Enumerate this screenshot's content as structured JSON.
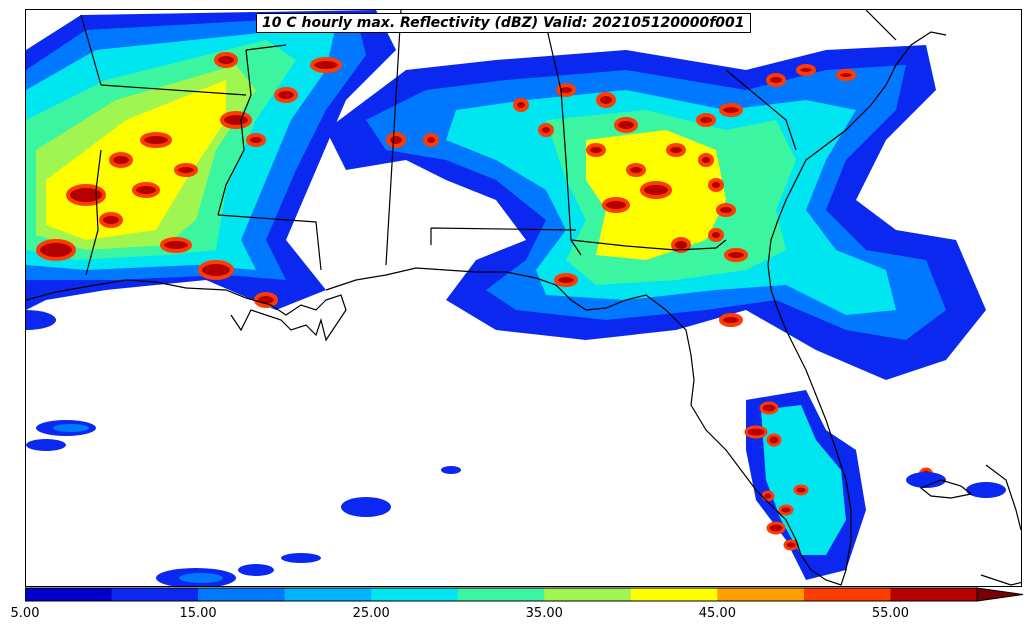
{
  "title": "10 C hourly max. Reflectivity (dBZ) Valid: 202105120000f001",
  "colorbar": {
    "tick_labels": [
      "5.00",
      "15.00",
      "25.00",
      "35.00",
      "45.00",
      "55.00"
    ],
    "levels": [
      5,
      10,
      15,
      20,
      25,
      30,
      35,
      40,
      45,
      50,
      55
    ],
    "colors": [
      "#0000c8",
      "#0a28f0",
      "#0078ff",
      "#00b4ff",
      "#00e6f0",
      "#3cf5a0",
      "#a0f550",
      "#ffff00",
      "#ffa000",
      "#ff3c00",
      "#b40000",
      "#780000"
    ],
    "extend": "max"
  },
  "map": {
    "region": "Southeastern United States and Gulf of Mexico",
    "field": "hourly max reflectivity",
    "units": "dBZ"
  }
}
